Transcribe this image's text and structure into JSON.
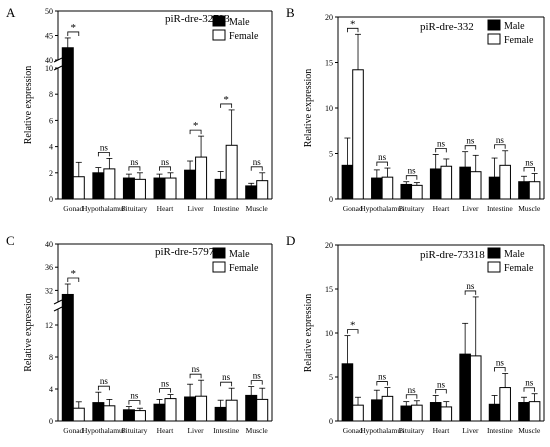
{
  "chart_data": [
    {
      "panel": "A",
      "type": "bar",
      "title": "piR-dre-32793",
      "ylabel": "Relative expression",
      "categories": [
        "Gonad",
        "Hypothalamus",
        "Pituitary",
        "Heart",
        "Liver",
        "Intestine",
        "Muscle"
      ],
      "series": [
        {
          "name": "Male",
          "values": [
            42.5,
            2.0,
            1.6,
            1.6,
            2.2,
            1.5,
            1.0
          ],
          "errors": [
            2.0,
            0.4,
            0.3,
            0.3,
            0.7,
            0.6,
            0.2
          ]
        },
        {
          "name": "Female",
          "values": [
            1.7,
            2.3,
            1.5,
            1.6,
            3.2,
            4.1,
            1.4
          ],
          "errors": [
            1.1,
            0.8,
            0.5,
            0.4,
            1.6,
            2.7,
            0.6
          ]
        }
      ],
      "significance": [
        "*",
        "ns",
        "ns",
        "ns",
        "*",
        "*",
        "ns"
      ],
      "axis_break": {
        "lower": [
          0,
          10
        ],
        "upper": [
          40,
          50
        ]
      },
      "yticks": [
        "0",
        "2",
        "4",
        "6",
        "8",
        "10",
        "40",
        "45",
        "50"
      ],
      "legend": "top-right"
    },
    {
      "panel": "B",
      "type": "bar",
      "title": "piR-dre-332",
      "ylabel": "Relative expression",
      "categories": [
        "Gonad",
        "Hypothalamus",
        "Pituitary",
        "Heart",
        "Liver",
        "Intestine",
        "Muscle"
      ],
      "series": [
        {
          "name": "Male",
          "values": [
            3.7,
            2.3,
            1.6,
            3.3,
            3.5,
            2.4,
            1.9
          ],
          "errors": [
            3.0,
            0.9,
            0.3,
            1.6,
            1.7,
            2.1,
            0.6
          ]
        },
        {
          "name": "Female",
          "values": [
            14.2,
            2.4,
            1.5,
            3.6,
            3.0,
            3.7,
            1.9
          ],
          "errors": [
            3.9,
            1.0,
            0.3,
            0.8,
            1.8,
            1.6,
            0.9
          ]
        }
      ],
      "significance": [
        "*",
        "ns",
        "ns",
        "ns",
        "ns",
        "ns",
        "ns"
      ],
      "ylim": [
        0,
        20
      ],
      "yticks": [
        "0",
        "5",
        "10",
        "15",
        "20"
      ],
      "legend": "top-right"
    },
    {
      "panel": "C",
      "type": "bar",
      "title": "piR-dre-5797",
      "ylabel": "Relative expression",
      "categories": [
        "Gonad",
        "Hypothalamus",
        "Pituitary",
        "Heart",
        "Liver",
        "Intestine",
        "Muscle"
      ],
      "series": [
        {
          "name": "Male",
          "values": [
            31.3,
            2.3,
            1.4,
            2.1,
            3.0,
            1.7,
            3.2
          ],
          "errors": [
            1.8,
            1.3,
            0.4,
            0.6,
            1.6,
            0.9,
            1.1
          ]
        },
        {
          "name": "Female",
          "values": [
            1.6,
            1.9,
            1.3,
            2.8,
            3.1,
            2.6,
            2.7
          ],
          "errors": [
            0.8,
            0.8,
            0.3,
            0.5,
            2.0,
            1.5,
            1.4
          ]
        }
      ],
      "significance": [
        "*",
        "ns",
        "ns",
        "ns",
        "ns",
        "ns",
        "ns"
      ],
      "axis_break": {
        "lower": [
          0,
          14
        ],
        "upper": [
          30,
          40
        ]
      },
      "yticks": [
        "0",
        "4",
        "8",
        "12",
        "32",
        "36",
        "40"
      ],
      "legend": "top-right"
    },
    {
      "panel": "D",
      "type": "bar",
      "title": "piR-dre-73318",
      "ylabel": "Relative expression",
      "categories": [
        "Gonad",
        "Hypothalamus",
        "Pituitary",
        "Heart",
        "Liver",
        "Intestine",
        "Muscle"
      ],
      "series": [
        {
          "name": "Male",
          "values": [
            6.5,
            2.4,
            1.7,
            2.1,
            7.6,
            1.9,
            2.1
          ],
          "errors": [
            3.2,
            1.1,
            0.5,
            0.8,
            3.5,
            1.0,
            0.6
          ]
        },
        {
          "name": "Female",
          "values": [
            1.8,
            2.8,
            1.8,
            1.6,
            7.4,
            3.8,
            2.2
          ],
          "errors": [
            0.9,
            1.0,
            0.5,
            0.6,
            6.7,
            1.6,
            0.9
          ]
        }
      ],
      "significance": [
        "*",
        "ns",
        "ns",
        "ns",
        "ns",
        "ns",
        "ns"
      ],
      "ylim": [
        0,
        20
      ],
      "yticks": [
        "0",
        "5",
        "10",
        "15",
        "20"
      ],
      "legend": "top-right"
    }
  ]
}
